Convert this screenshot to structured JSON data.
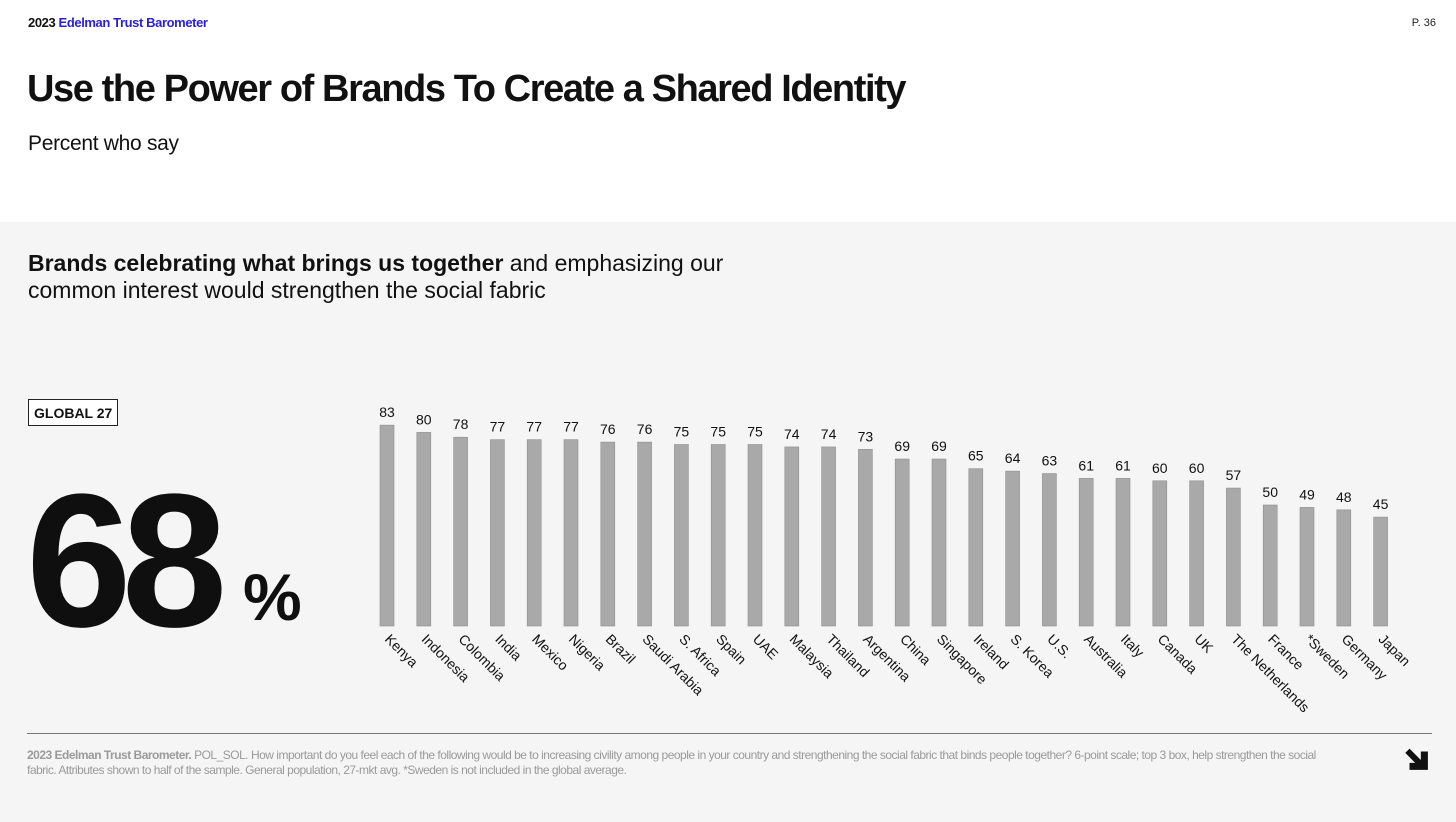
{
  "header": {
    "year": "2023",
    "brand": "Edelman Trust Barometer",
    "page": "P. 36"
  },
  "title": "Use the Power of Brands To Create a Shared Identity",
  "subtitle": "Percent who say",
  "headline": {
    "bold": "Brands celebrating what brings us together",
    "rest": " and emphasizing our common interest would strengthen the social fabric"
  },
  "global_label": "GLOBAL 27",
  "global_value": "68",
  "global_unit": "%",
  "footnote": {
    "bold": "2023 Edelman Trust Barometer.",
    "text": " POL_SOL. How important do you feel each of the following would be to increasing civility among people in your country and strengthening the social fabric that binds people together? 6-point scale; top 3 box, help strengthen the social fabric. Attributes shown to half of the sample. General population, 27-mkt avg. *Sweden is not included in the global average."
  },
  "icons": {
    "next": "arrow-down-right-icon"
  },
  "colors": {
    "bar": "#a9a9a9",
    "brand": "#2a1fd6",
    "panel": "#f5f5f5"
  },
  "chart_data": {
    "type": "bar",
    "categories": [
      "Kenya",
      "Indonesia",
      "Colombia",
      "India",
      "Mexico",
      "Nigeria",
      "Brazil",
      "Saudi Arabia",
      "S. Africa",
      "Spain",
      "UAE",
      "Malaysia",
      "Thailand",
      "Argentina",
      "China",
      "Singapore",
      "Ireland",
      "S. Korea",
      "U.S.",
      "Australia",
      "Italy",
      "Canada",
      "UK",
      "The Netherlands",
      "France",
      "*Sweden",
      "Germany",
      "Japan"
    ],
    "values": [
      83,
      80,
      78,
      77,
      77,
      77,
      76,
      76,
      75,
      75,
      75,
      74,
      74,
      73,
      69,
      69,
      65,
      64,
      63,
      61,
      61,
      60,
      60,
      57,
      50,
      49,
      48,
      45
    ],
    "ylim": [
      0,
      100
    ],
    "grid": false,
    "data_labels": true
  }
}
